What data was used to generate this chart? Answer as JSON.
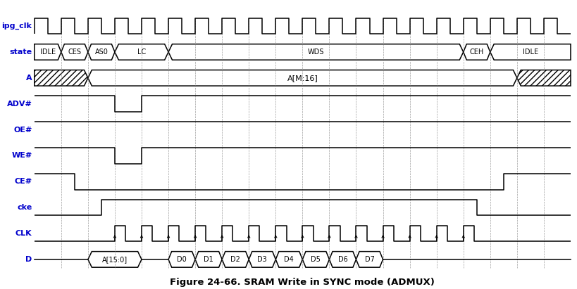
{
  "title": "Figure 24-66. SRAM Write in SYNC mode (ADMUX)",
  "title_color": "#000000",
  "label_color": "#0000CC",
  "signal_color": "#000000",
  "bg_color": "#FFFFFF",
  "figsize": [
    8.19,
    4.11
  ],
  "dpi": 100,
  "signals": [
    "ipg_clk",
    "state",
    "A",
    "ADV#",
    "OE#",
    "WE#",
    "CE#",
    "cke",
    "CLK",
    "D"
  ],
  "total_time": 20,
  "state_segs": [
    [
      0,
      1,
      "IDLE"
    ],
    [
      1,
      2,
      "CES"
    ],
    [
      2,
      3,
      "AS0"
    ],
    [
      3,
      5,
      "LC"
    ],
    [
      5,
      16,
      "WDS"
    ],
    [
      16,
      17,
      "CEH"
    ],
    [
      17,
      20,
      "IDLE"
    ]
  ],
  "D_segs": [
    [
      2,
      4,
      "A[15:0]"
    ],
    [
      5,
      6,
      "D0"
    ],
    [
      6,
      7,
      "D1"
    ],
    [
      7,
      8,
      "D2"
    ],
    [
      8,
      9,
      "D3"
    ],
    [
      9,
      10,
      "D4"
    ],
    [
      10,
      11,
      "D5"
    ],
    [
      11,
      12,
      "D6"
    ],
    [
      12,
      13,
      "D7"
    ]
  ],
  "clk_pulse_times": [
    3,
    4,
    5,
    6,
    7,
    8,
    9,
    10,
    11,
    12,
    13,
    14,
    15,
    16
  ],
  "grid_times": [
    1,
    2,
    3,
    4,
    5,
    6,
    7,
    8,
    9,
    10,
    11,
    12,
    13,
    14,
    15,
    16,
    17,
    18,
    19
  ]
}
